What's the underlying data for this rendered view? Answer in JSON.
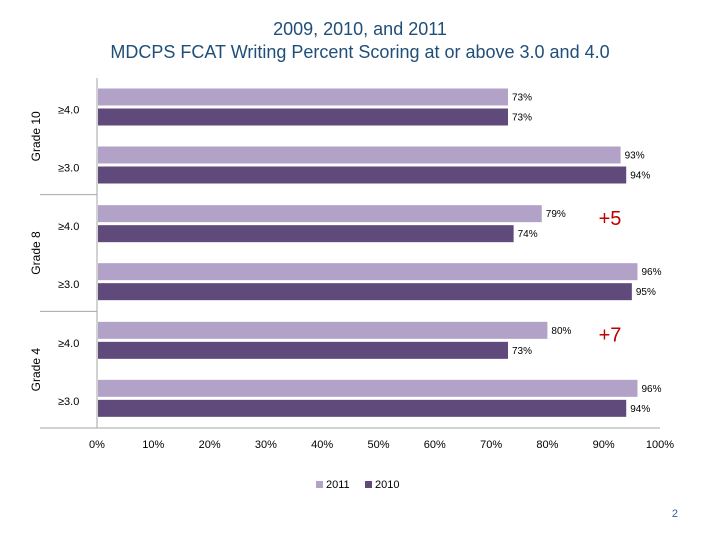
{
  "chart_data": {
    "type": "bar",
    "orientation": "horizontal",
    "title": "2009, 2010, and 2011",
    "subtitle": "MDCPS FCAT Writing Percent Scoring at or above 3.0 and 4.0",
    "groups": [
      {
        "name": "Grade 10",
        "categories": [
          "≥4.0",
          "≥3.0"
        ],
        "series": [
          {
            "name": "2011",
            "values": [
              73,
              93
            ]
          },
          {
            "name": "2010",
            "values": [
              73,
              94
            ]
          }
        ],
        "annotation": ""
      },
      {
        "name": "Grade 8",
        "categories": [
          "≥4.0",
          "≥3.0"
        ],
        "series": [
          {
            "name": "2011",
            "values": [
              79,
              96
            ]
          },
          {
            "name": "2010",
            "values": [
              74,
              95
            ]
          }
        ],
        "annotation": "+5"
      },
      {
        "name": "Grade 4",
        "categories": [
          "≥4.0",
          "≥3.0"
        ],
        "series": [
          {
            "name": "2011",
            "values": [
              80,
              96
            ]
          },
          {
            "name": "2010",
            "values": [
              73,
              94
            ]
          }
        ],
        "annotation": "+7"
      }
    ],
    "x_ticks": [
      "0%",
      "10%",
      "20%",
      "30%",
      "40%",
      "50%",
      "60%",
      "70%",
      "80%",
      "90%",
      "100%"
    ],
    "xlim": [
      0,
      100
    ],
    "value_suffix": "%",
    "grid": false,
    "legend": {
      "position": "bottom",
      "entries": [
        "2011",
        "2010"
      ]
    },
    "colors": {
      "2011": "#b3a2c7",
      "2010": "#604a7b",
      "annotation": "#c00000",
      "axis": "#a6a6a6"
    }
  },
  "page_number": "2"
}
